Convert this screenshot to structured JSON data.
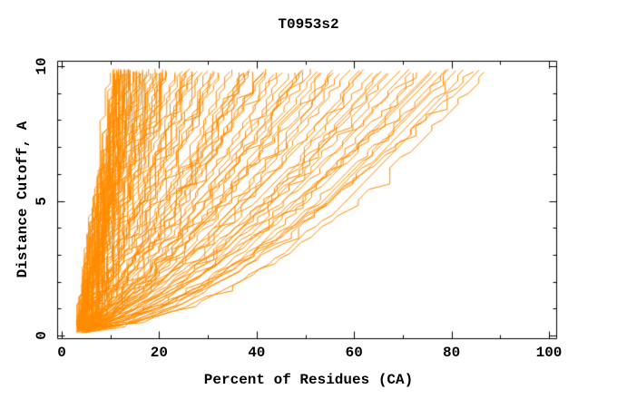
{
  "page": {
    "background": "#ffffff"
  },
  "chart_data": {
    "type": "line",
    "title": "T0953s2",
    "xlabel": "Percent of Residues (CA)",
    "ylabel": "Distance Cutoff, A",
    "xlim": [
      0,
      100
    ],
    "ylim": [
      0,
      10
    ],
    "x_ticks": [
      0,
      20,
      40,
      60,
      80,
      100
    ],
    "x_minor_tick_step": 10,
    "y_ticks": [
      0,
      5,
      10
    ],
    "y_minor_tick_step": 1,
    "grid": false,
    "legend": "none",
    "tick_style": "inward-all-four-sides",
    "line_color": "#ff8c00",
    "axis_color": "#000000",
    "background": "#ffffff",
    "description": "Dense ensemble of overlapping per-model accuracy curves: percent of CA residues under a distance cutoff vs cutoff. Curves funnel from ~4% at 0.2 A and fan out; most end between 12% and 45% at 9.8 A, a sparse tail reaches ~87%.",
    "curves": {
      "count": 138,
      "seed": 953,
      "percent_quantum": 1.075,
      "start_percent_range": [
        3.0,
        5.5
      ],
      "end_percent_range": [
        11.5,
        88.0
      ],
      "end_percent_distribution_power": 2.4,
      "start_cutoff_range": [
        0.1,
        0.4
      ],
      "end_cutoff_range": [
        9.68,
        9.9
      ],
      "shape_exponent_range": [
        0.58,
        1.3
      ],
      "burst_probability": 0.045
    },
    "envelope_samples": {
      "cutoff": [
        0.2,
        2.0,
        5.0,
        8.0,
        9.7
      ],
      "min_percent": [
        3.0,
        4.5,
        7.5,
        10.0,
        11.5
      ],
      "max_percent": [
        5.0,
        30.0,
        64.0,
        82.0,
        87.0
      ]
    }
  }
}
